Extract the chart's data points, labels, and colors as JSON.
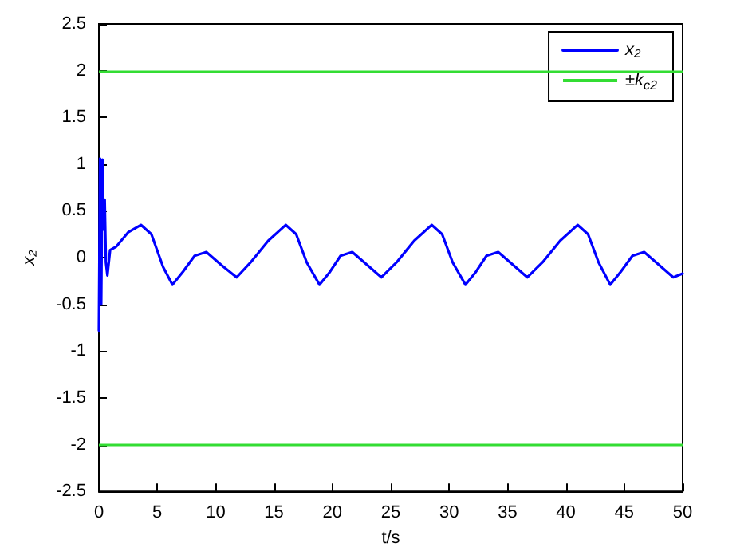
{
  "chart_data": {
    "type": "line",
    "xlabel": "t/s",
    "ylabel": "x₂",
    "x": [
      0,
      0.1,
      0.2,
      0.3,
      0.4,
      0.5,
      0.6,
      0.73,
      0.96,
      1.5,
      2.5,
      3.6,
      4.5,
      5.5,
      6.3,
      7.2,
      8.2,
      9.2,
      10.5,
      11.8,
      13,
      14.5,
      16,
      16.9,
      17.8,
      18.9,
      19.8,
      20.7,
      21.7,
      23,
      24.2,
      25.5,
      27,
      28.5,
      29.4,
      30.3,
      31.4,
      32.3,
      33.2,
      34.2,
      35.5,
      36.7,
      38,
      39.5,
      41,
      41.9,
      42.8,
      43.8,
      44.7,
      45.7,
      46.7,
      48,
      49.2,
      50
    ],
    "series": [
      {
        "name": "x₂",
        "color": "#0000ff",
        "values": [
          -0.78,
          1.06,
          -0.5,
          1.05,
          0.3,
          0.62,
          -0.05,
          -0.19,
          0.08,
          0.12,
          0.27,
          0.35,
          0.25,
          -0.1,
          -0.29,
          -0.15,
          0.02,
          0.06,
          -0.08,
          -0.21,
          -0.05,
          0.18,
          0.35,
          0.25,
          -0.05,
          -0.29,
          -0.15,
          0.02,
          0.06,
          -0.08,
          -0.21,
          -0.05,
          0.18,
          0.35,
          0.25,
          -0.05,
          -0.29,
          -0.15,
          0.02,
          0.06,
          -0.08,
          -0.21,
          -0.05,
          0.18,
          0.35,
          0.25,
          -0.05,
          -0.29,
          -0.15,
          0.02,
          0.06,
          -0.08,
          -0.21,
          -0.17
        ]
      }
    ],
    "ref_lines": [
      {
        "axis": "y",
        "value": 2,
        "label": "±k$_{c2}$",
        "color": "#33dd33"
      },
      {
        "axis": "y",
        "value": -2,
        "color": "#33dd33"
      }
    ],
    "xlim": [
      0,
      50
    ],
    "xticks": [
      0,
      5,
      10,
      15,
      20,
      25,
      30,
      35,
      40,
      45,
      50
    ],
    "ylim": [
      -2.5,
      2.5
    ],
    "yticks": [
      -2.5,
      -2,
      -1.5,
      -1,
      -0.5,
      0,
      0.5,
      1,
      1.5,
      2,
      2.5
    ],
    "legend": "top right",
    "marker": "none",
    "line_style": "solid"
  }
}
